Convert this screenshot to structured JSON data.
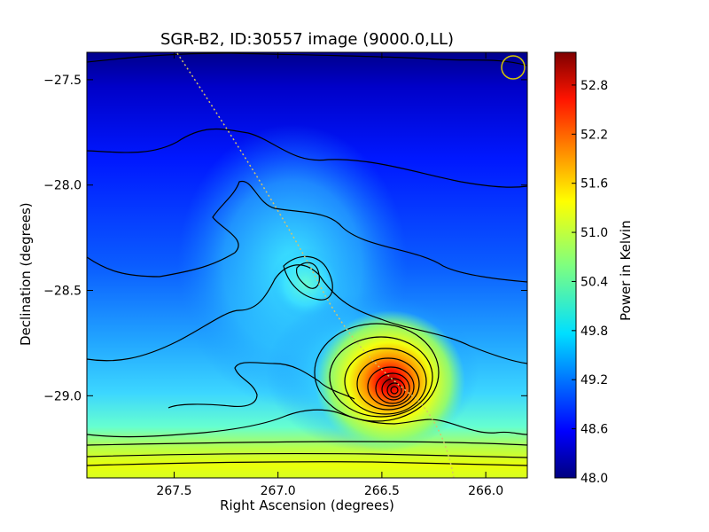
{
  "chart_data": {
    "type": "heatmap",
    "title": "SGR-B2, ID:30557 image (9000.0,LL)",
    "xlabel": "Right Ascension (degrees)",
    "ylabel": "Declination (degrees)",
    "colorbar_label": "Power in Kelvin",
    "xlim": [
      267.92,
      265.8
    ],
    "ylim": [
      -29.39,
      -27.37
    ],
    "x_ticks": [
      267.5,
      267.0,
      266.5,
      266.0
    ],
    "x_tick_labels": [
      "267.5",
      "267.0",
      "266.5",
      "266.0"
    ],
    "y_ticks": [
      -27.5,
      -28.0,
      -28.5,
      -29.0
    ],
    "y_tick_labels": [
      "−27.5",
      "−28.0",
      "−28.5",
      "−29.0"
    ],
    "colorbar_range": [
      48.0,
      53.2
    ],
    "colorbar_ticks": [
      48.0,
      48.6,
      49.2,
      49.8,
      50.4,
      51.0,
      51.6,
      52.2,
      52.8
    ],
    "colorbar_tick_labels": [
      "48.0",
      "48.6",
      "49.2",
      "49.8",
      "50.4",
      "51.0",
      "51.6",
      "52.2",
      "52.8"
    ],
    "colormap": "jet",
    "peak_location": {
      "ra": 266.45,
      "dec": -28.97
    },
    "secondary_peak_location": {
      "ra": 266.83,
      "dec": -28.44
    },
    "beam_circle_location": {
      "ra": 265.86,
      "dec": -27.44
    },
    "contour_color": "#000000",
    "overlay_line_color": "#d4c36a",
    "beam_circle_color": "#d4c600"
  }
}
